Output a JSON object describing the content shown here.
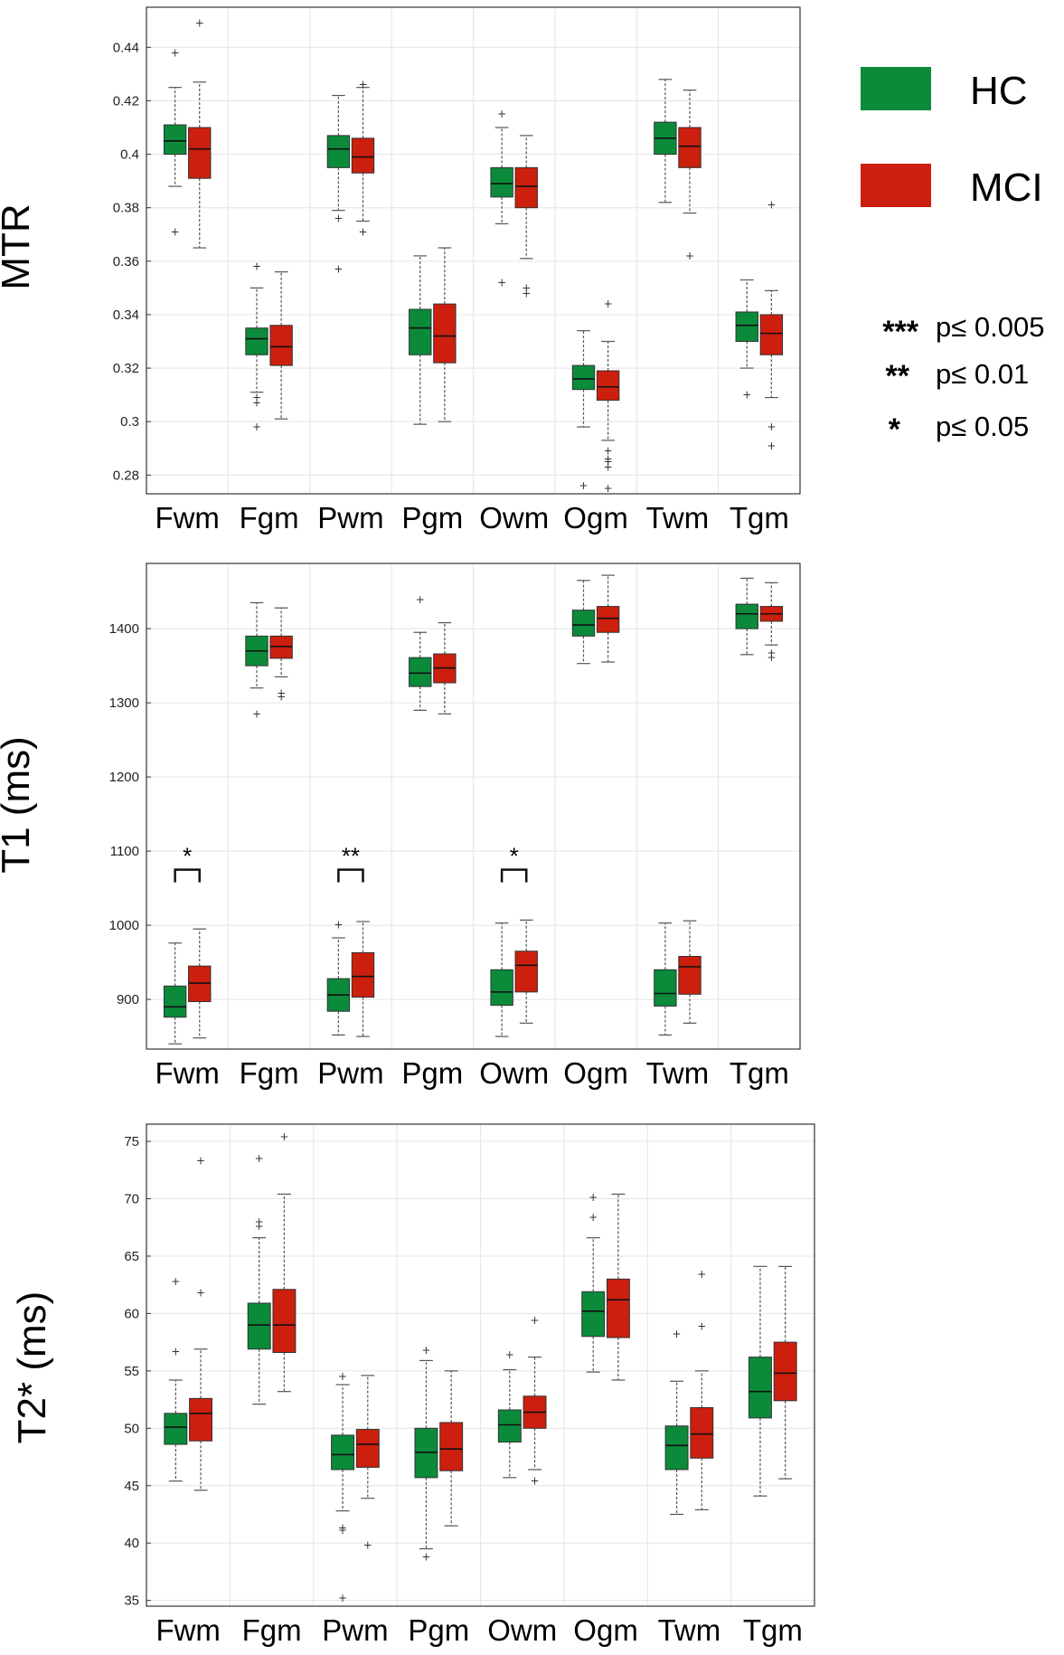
{
  "legend": {
    "entries": [
      {
        "label": "HC",
        "color": "#0b8a3a"
      },
      {
        "label": "MCI",
        "color": "#cc1f0e"
      }
    ]
  },
  "significance": [
    {
      "stars": "***",
      "text": "p≤ 0.005"
    },
    {
      "stars": "**",
      "text": "p≤ 0.01"
    },
    {
      "stars": "*",
      "text": "p≤ 0.05"
    }
  ],
  "chart_data": [
    {
      "type": "boxplot",
      "ylabel": "MTR",
      "categories": [
        "Fwm",
        "Fgm",
        "Pwm",
        "Pgm",
        "Owm",
        "Ogm",
        "Twm",
        "Tgm"
      ],
      "ylim": [
        0.273,
        0.455
      ],
      "yticks": [
        0.28,
        0.3,
        0.32,
        0.34,
        0.36,
        0.38,
        0.4,
        0.42,
        0.44
      ],
      "ytick_labels": [
        "0.28",
        "0.3",
        "0.32",
        "0.34",
        "0.36",
        "0.38",
        "0.4",
        "0.42",
        "0.44"
      ],
      "grid": true,
      "series": [
        {
          "name": "HC",
          "color": "#0b8a3a",
          "boxes": [
            {
              "min": 0.388,
              "q1": 0.4,
              "median": 0.405,
              "q3": 0.411,
              "max": 0.425,
              "outliers": [
                0.371,
                0.438
              ]
            },
            {
              "min": 0.311,
              "q1": 0.325,
              "median": 0.331,
              "q3": 0.335,
              "max": 0.35,
              "outliers": [
                0.298,
                0.307,
                0.309,
                0.358
              ]
            },
            {
              "min": 0.379,
              "q1": 0.395,
              "median": 0.402,
              "q3": 0.407,
              "max": 0.422,
              "outliers": [
                0.357,
                0.376
              ]
            },
            {
              "min": 0.299,
              "q1": 0.325,
              "median": 0.335,
              "q3": 0.342,
              "max": 0.362,
              "outliers": []
            },
            {
              "min": 0.374,
              "q1": 0.384,
              "median": 0.389,
              "q3": 0.395,
              "max": 0.41,
              "outliers": [
                0.352,
                0.415
              ]
            },
            {
              "min": 0.298,
              "q1": 0.312,
              "median": 0.316,
              "q3": 0.321,
              "max": 0.334,
              "outliers": [
                0.276
              ]
            },
            {
              "min": 0.382,
              "q1": 0.4,
              "median": 0.406,
              "q3": 0.412,
              "max": 0.428,
              "outliers": []
            },
            {
              "min": 0.32,
              "q1": 0.33,
              "median": 0.336,
              "q3": 0.341,
              "max": 0.353,
              "outliers": [
                0.31
              ]
            }
          ]
        },
        {
          "name": "MCI",
          "color": "#cc1f0e",
          "boxes": [
            {
              "min": 0.365,
              "q1": 0.391,
              "median": 0.402,
              "q3": 0.41,
              "max": 0.427,
              "outliers": [
                0.449
              ]
            },
            {
              "min": 0.301,
              "q1": 0.321,
              "median": 0.328,
              "q3": 0.336,
              "max": 0.356,
              "outliers": []
            },
            {
              "min": 0.375,
              "q1": 0.393,
              "median": 0.399,
              "q3": 0.406,
              "max": 0.425,
              "outliers": [
                0.371,
                0.426
              ]
            },
            {
              "min": 0.3,
              "q1": 0.322,
              "median": 0.332,
              "q3": 0.344,
              "max": 0.365,
              "outliers": []
            },
            {
              "min": 0.361,
              "q1": 0.38,
              "median": 0.388,
              "q3": 0.395,
              "max": 0.407,
              "outliers": [
                0.348,
                0.35
              ]
            },
            {
              "min": 0.293,
              "q1": 0.308,
              "median": 0.313,
              "q3": 0.319,
              "max": 0.33,
              "outliers": [
                0.275,
                0.283,
                0.285,
                0.286,
                0.289,
                0.344
              ]
            },
            {
              "min": 0.378,
              "q1": 0.395,
              "median": 0.403,
              "q3": 0.41,
              "max": 0.424,
              "outliers": [
                0.362
              ]
            },
            {
              "min": 0.309,
              "q1": 0.325,
              "median": 0.333,
              "q3": 0.34,
              "max": 0.349,
              "outliers": [
                0.291,
                0.298,
                0.381
              ]
            }
          ]
        }
      ],
      "annotations": []
    },
    {
      "type": "boxplot",
      "ylabel": "T1 (ms)",
      "categories": [
        "Fwm",
        "Fgm",
        "Pwm",
        "Pgm",
        "Owm",
        "Ogm",
        "Twm",
        "Tgm"
      ],
      "ylim": [
        833,
        1488
      ],
      "yticks": [
        900,
        1000,
        1100,
        1200,
        1300,
        1400
      ],
      "ytick_labels": [
        "900",
        "1000",
        "1100",
        "1200",
        "1300",
        "1400"
      ],
      "grid": true,
      "series": [
        {
          "name": "HC",
          "color": "#0b8a3a",
          "boxes": [
            {
              "min": 840,
              "q1": 876,
              "median": 890,
              "q3": 918,
              "max": 976,
              "outliers": []
            },
            {
              "min": 1320,
              "q1": 1350,
              "median": 1370,
              "q3": 1390,
              "max": 1435,
              "outliers": [
                1285
              ]
            },
            {
              "min": 852,
              "q1": 884,
              "median": 906,
              "q3": 928,
              "max": 983,
              "outliers": [
                1001
              ]
            },
            {
              "min": 1290,
              "q1": 1322,
              "median": 1340,
              "q3": 1361,
              "max": 1395,
              "outliers": [
                1439
              ]
            },
            {
              "min": 850,
              "q1": 892,
              "median": 910,
              "q3": 940,
              "max": 1003,
              "outliers": []
            },
            {
              "min": 1353,
              "q1": 1390,
              "median": 1405,
              "q3": 1425,
              "max": 1465,
              "outliers": []
            },
            {
              "min": 852,
              "q1": 891,
              "median": 908,
              "q3": 940,
              "max": 1003,
              "outliers": []
            },
            {
              "min": 1365,
              "q1": 1400,
              "median": 1420,
              "q3": 1433,
              "max": 1468,
              "outliers": []
            }
          ]
        },
        {
          "name": "MCI",
          "color": "#cc1f0e",
          "boxes": [
            {
              "min": 848,
              "q1": 897,
              "median": 922,
              "q3": 945,
              "max": 995,
              "outliers": []
            },
            {
              "min": 1335,
              "q1": 1360,
              "median": 1376,
              "q3": 1390,
              "max": 1428,
              "outliers": [
                1308,
                1313
              ]
            },
            {
              "min": 850,
              "q1": 903,
              "median": 931,
              "q3": 963,
              "max": 1005,
              "outliers": []
            },
            {
              "min": 1285,
              "q1": 1327,
              "median": 1347,
              "q3": 1366,
              "max": 1408,
              "outliers": []
            },
            {
              "min": 868,
              "q1": 910,
              "median": 946,
              "q3": 965,
              "max": 1007,
              "outliers": []
            },
            {
              "min": 1355,
              "q1": 1395,
              "median": 1414,
              "q3": 1430,
              "max": 1472,
              "outliers": []
            },
            {
              "min": 868,
              "q1": 907,
              "median": 944,
              "q3": 958,
              "max": 1006,
              "outliers": []
            },
            {
              "min": 1378,
              "q1": 1410,
              "median": 1420,
              "q3": 1430,
              "max": 1462,
              "outliers": [
                1361,
                1367
              ]
            }
          ]
        }
      ],
      "annotations": [
        {
          "category": "Fwm",
          "label": "*",
          "bracket_value": 1075
        },
        {
          "category": "Pwm",
          "label": "**",
          "bracket_value": 1075
        },
        {
          "category": "Owm",
          "label": "*",
          "bracket_value": 1075
        }
      ]
    },
    {
      "type": "boxplot",
      "ylabel": "T2* (ms)",
      "categories": [
        "Fwm",
        "Fgm",
        "Pwm",
        "Pgm",
        "Owm",
        "Ogm",
        "Twm",
        "Tgm"
      ],
      "ylim": [
        34.5,
        76.5
      ],
      "yticks": [
        35,
        40,
        45,
        50,
        55,
        60,
        65,
        70,
        75
      ],
      "ytick_labels": [
        "35",
        "40",
        "45",
        "50",
        "55",
        "60",
        "65",
        "70",
        "75"
      ],
      "grid": true,
      "series": [
        {
          "name": "HC",
          "color": "#0b8a3a",
          "boxes": [
            {
              "min": 45.4,
              "q1": 48.6,
              "median": 50.1,
              "q3": 51.3,
              "max": 54.2,
              "outliers": [
                56.7,
                62.8
              ]
            },
            {
              "min": 52.1,
              "q1": 56.9,
              "median": 59.0,
              "q3": 60.9,
              "max": 66.6,
              "outliers": [
                67.6,
                68.0,
                73.5
              ]
            },
            {
              "min": 42.8,
              "q1": 46.4,
              "median": 47.7,
              "q3": 49.4,
              "max": 53.8,
              "outliers": [
                35.2,
                41.1,
                41.3,
                54.5
              ]
            },
            {
              "min": 39.5,
              "q1": 45.7,
              "median": 47.9,
              "q3": 50.0,
              "max": 55.9,
              "outliers": [
                38.8,
                56.8
              ]
            },
            {
              "min": 45.7,
              "q1": 48.8,
              "median": 50.3,
              "q3": 51.6,
              "max": 55.1,
              "outliers": [
                56.4
              ]
            },
            {
              "min": 54.9,
              "q1": 58.0,
              "median": 60.2,
              "q3": 61.9,
              "max": 66.6,
              "outliers": [
                68.4,
                70.1
              ]
            },
            {
              "min": 42.5,
              "q1": 46.4,
              "median": 48.5,
              "q3": 50.2,
              "max": 54.1,
              "outliers": [
                58.2
              ]
            },
            {
              "min": 44.1,
              "q1": 50.9,
              "median": 53.2,
              "q3": 56.2,
              "max": 64.1,
              "outliers": []
            }
          ]
        },
        {
          "name": "MCI",
          "color": "#cc1f0e",
          "boxes": [
            {
              "min": 44.6,
              "q1": 48.9,
              "median": 51.3,
              "q3": 52.6,
              "max": 56.9,
              "outliers": [
                61.8,
                73.3
              ]
            },
            {
              "min": 53.2,
              "q1": 56.6,
              "median": 59.0,
              "q3": 62.1,
              "max": 70.4,
              "outliers": [
                75.4
              ]
            },
            {
              "min": 43.9,
              "q1": 46.6,
              "median": 48.6,
              "q3": 49.9,
              "max": 54.6,
              "outliers": [
                39.8
              ]
            },
            {
              "min": 41.5,
              "q1": 46.3,
              "median": 48.2,
              "q3": 50.5,
              "max": 55.0,
              "outliers": []
            },
            {
              "min": 46.4,
              "q1": 50.0,
              "median": 51.4,
              "q3": 52.8,
              "max": 56.2,
              "outliers": [
                45.4,
                59.4
              ]
            },
            {
              "min": 54.2,
              "q1": 57.9,
              "median": 61.2,
              "q3": 63.0,
              "max": 70.4,
              "outliers": []
            },
            {
              "min": 42.9,
              "q1": 47.4,
              "median": 49.5,
              "q3": 51.8,
              "max": 55.0,
              "outliers": [
                58.9,
                63.4
              ]
            },
            {
              "min": 45.6,
              "q1": 52.4,
              "median": 54.8,
              "q3": 57.5,
              "max": 64.1,
              "outliers": []
            }
          ]
        }
      ],
      "annotations": []
    }
  ]
}
